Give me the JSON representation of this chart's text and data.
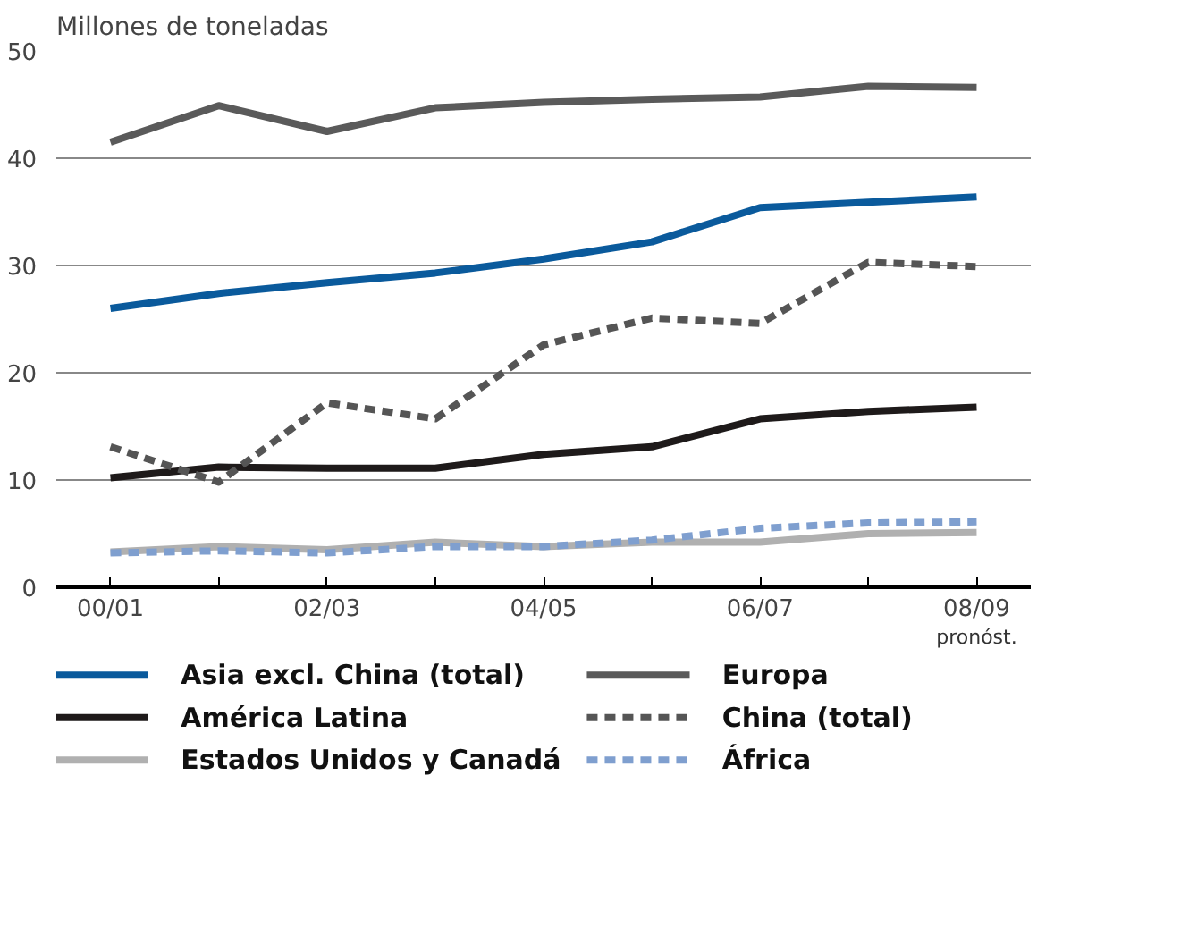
{
  "chart_data": {
    "type": "line",
    "title": "Millones de toneladas",
    "categories": [
      "00/01",
      null,
      "02/03",
      null,
      "04/05",
      null,
      "06/07",
      null,
      "08/09"
    ],
    "series": [
      {
        "name": "Asia excl. China (total)",
        "color": "#0a5a9c",
        "line_style": "solid",
        "values": [
          26.0,
          27.4,
          28.4,
          29.3,
          30.6,
          32.2,
          35.4,
          35.9,
          36.4
        ]
      },
      {
        "name": "Europa",
        "color": "#5a5a5a",
        "line_style": "solid",
        "values": [
          41.5,
          44.9,
          42.5,
          44.7,
          45.2,
          45.5,
          45.7,
          46.7,
          46.6
        ]
      },
      {
        "name": "América Latina",
        "color": "#1e1a1a",
        "line_style": "solid",
        "values": [
          10.2,
          11.2,
          11.1,
          11.1,
          12.4,
          13.1,
          15.7,
          16.4,
          16.8
        ]
      },
      {
        "name": "China (total)",
        "color": "#555555",
        "line_style": "dashed",
        "values": [
          13.1,
          9.8,
          17.2,
          15.7,
          22.6,
          25.1,
          24.6,
          30.3,
          29.9
        ]
      },
      {
        "name": "Estados Unidos y Canadá",
        "color": "#b0b0b0",
        "line_style": "solid",
        "values": [
          3.3,
          3.8,
          3.5,
          4.2,
          3.8,
          4.2,
          4.2,
          5.0,
          5.1
        ]
      },
      {
        "name": "África",
        "color": "#7f9fcf",
        "line_style": "dashed",
        "values": [
          3.2,
          3.4,
          3.2,
          3.8,
          3.8,
          4.4,
          5.5,
          6.0,
          6.1
        ]
      }
    ],
    "ylim": [
      0,
      50
    ],
    "yticks": [
      0,
      10,
      20,
      30,
      40,
      50
    ],
    "grid": "y",
    "legend": "bottom",
    "annotations": [
      "pronóst."
    ]
  }
}
